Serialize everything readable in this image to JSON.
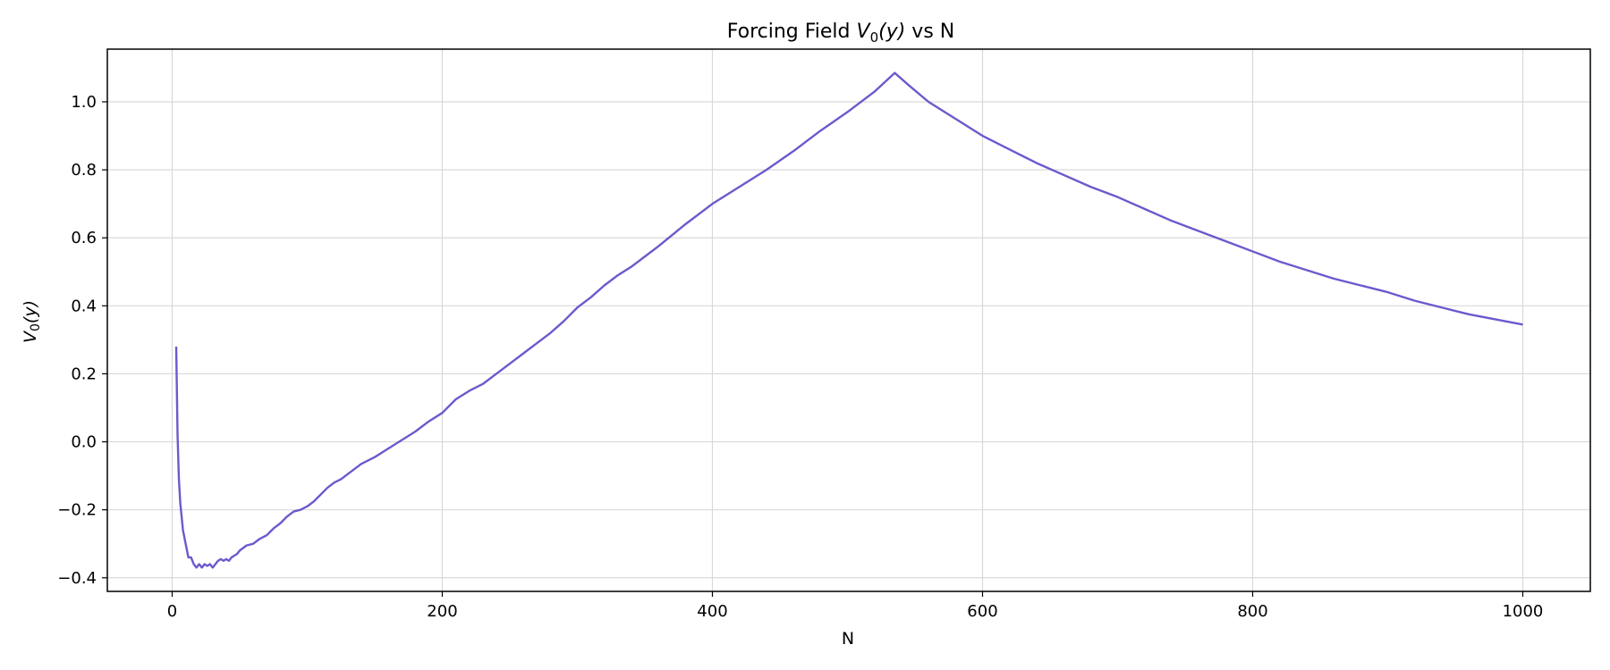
{
  "chart_data": {
    "type": "line",
    "title_prefix": "Forcing Field ",
    "title_var": "V",
    "title_sub": "0",
    "title_arg": "(y)",
    "title_suffix": " vs N",
    "xlabel": "N",
    "ylabel_var": "V",
    "ylabel_sub": "0",
    "ylabel_arg": "(y)",
    "xlim": [
      -48,
      1050
    ],
    "ylim": [
      -0.44,
      1.155
    ],
    "x_ticks": [
      0,
      200,
      400,
      600,
      800,
      1000
    ],
    "x_tick_labels": [
      "0",
      "200",
      "400",
      "600",
      "800",
      "1000"
    ],
    "y_ticks": [
      -0.4,
      -0.2,
      0.0,
      0.2,
      0.4,
      0.6,
      0.8,
      1.0
    ],
    "y_tick_labels": [
      "−0.4",
      "−0.2",
      "0.0",
      "0.2",
      "0.4",
      "0.6",
      "0.8",
      "1.0"
    ],
    "grid": true,
    "colors": {
      "line": "#6a5acd",
      "grid": "#d9d9d9",
      "axis": "#000000"
    },
    "series": [
      {
        "x": [
          3,
          4,
          5,
          6,
          7,
          8,
          9,
          10,
          12,
          14,
          16,
          18,
          20,
          22,
          24,
          26,
          28,
          30,
          32,
          34,
          36,
          38,
          40,
          42,
          44,
          46,
          48,
          50,
          55,
          60,
          65,
          70,
          75,
          80,
          85,
          90,
          95,
          100,
          105,
          110,
          115,
          120,
          125,
          130,
          140,
          150,
          160,
          170,
          180,
          190,
          200,
          210,
          220,
          230,
          240,
          250,
          260,
          270,
          280,
          290,
          300,
          310,
          320,
          330,
          340,
          350,
          360,
          380,
          400,
          420,
          440,
          460,
          480,
          500,
          520,
          535,
          545,
          560,
          580,
          600,
          620,
          640,
          660,
          680,
          700,
          720,
          740,
          760,
          780,
          800,
          820,
          840,
          860,
          880,
          900,
          920,
          940,
          960,
          980,
          1000
        ],
        "y": [
          0.28,
          0.02,
          -0.11,
          -0.18,
          -0.22,
          -0.26,
          -0.28,
          -0.3,
          -0.34,
          -0.34,
          -0.36,
          -0.37,
          -0.36,
          -0.37,
          -0.36,
          -0.365,
          -0.36,
          -0.37,
          -0.36,
          -0.35,
          -0.345,
          -0.35,
          -0.345,
          -0.35,
          -0.34,
          -0.335,
          -0.33,
          -0.32,
          -0.305,
          -0.3,
          -0.285,
          -0.275,
          -0.255,
          -0.24,
          -0.22,
          -0.205,
          -0.2,
          -0.19,
          -0.175,
          -0.155,
          -0.135,
          -0.12,
          -0.11,
          -0.095,
          -0.065,
          -0.045,
          -0.02,
          0.005,
          0.03,
          0.06,
          0.085,
          0.125,
          0.15,
          0.17,
          0.2,
          0.23,
          0.26,
          0.29,
          0.32,
          0.355,
          0.395,
          0.425,
          0.46,
          0.49,
          0.515,
          0.545,
          0.575,
          0.64,
          0.7,
          0.75,
          0.8,
          0.855,
          0.915,
          0.97,
          1.03,
          1.085,
          1.05,
          1.0,
          0.95,
          0.9,
          0.86,
          0.82,
          0.785,
          0.75,
          0.72,
          0.685,
          0.65,
          0.62,
          0.59,
          0.56,
          0.53,
          0.505,
          0.48,
          0.46,
          0.44,
          0.415,
          0.395,
          0.375,
          0.36,
          0.345
        ]
      }
    ]
  }
}
